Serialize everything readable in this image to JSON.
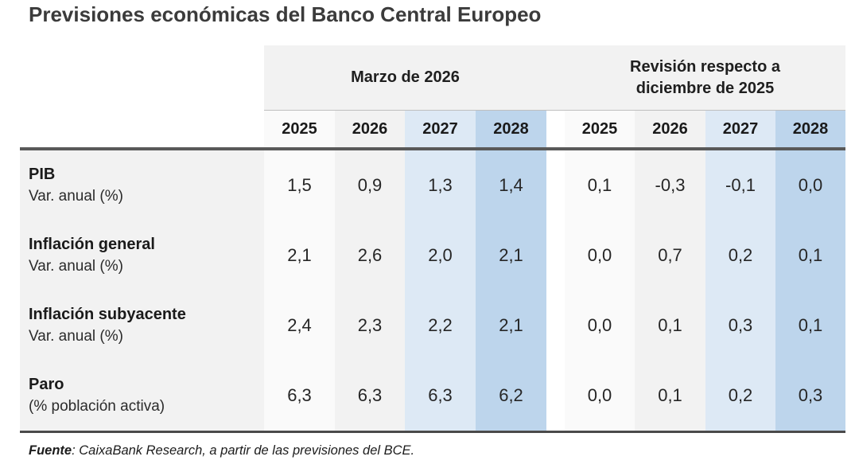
{
  "title": "Previsiones económicas del Banco Central Europeo",
  "table": {
    "group_headers": [
      "Marzo de 2026",
      "Revisión respecto a diciembre de 2025"
    ],
    "years": [
      "2025",
      "2026",
      "2027",
      "2028"
    ],
    "rows": [
      {
        "label": "PIB",
        "sublabel": "Var. anual (%)",
        "marzo": [
          "1,5",
          "0,9",
          "1,3",
          "1,4"
        ],
        "revision": [
          "0,1",
          "-0,3",
          "-0,1",
          "0,0"
        ]
      },
      {
        "label": "Inflación general",
        "sublabel": "Var. anual (%)",
        "marzo": [
          "2,1",
          "2,6",
          "2,0",
          "2,1"
        ],
        "revision": [
          "0,0",
          "0,7",
          "0,2",
          "0,1"
        ]
      },
      {
        "label": "Inflación subyacente",
        "sublabel": "Var. anual (%)",
        "marzo": [
          "2,4",
          "2,3",
          "2,2",
          "2,1"
        ],
        "revision": [
          "0,0",
          "0,1",
          "0,3",
          "0,1"
        ]
      },
      {
        "label": "Paro",
        "sublabel": "(% población activa)",
        "marzo": [
          "6,3",
          "6,3",
          "6,3",
          "6,2"
        ],
        "revision": [
          "0,0",
          "0,1",
          "0,2",
          "0,3"
        ]
      }
    ]
  },
  "footer": {
    "source_label": "Fuente",
    "source_text": ": CaixaBank Research, a partir de las previsiones del BCE."
  },
  "colors": {
    "band_gray": "#f2f2f2",
    "column_2025": "#fafafa",
    "column_2026": "#f2f2f2",
    "column_2027": "#dde9f5",
    "column_2028": "#bdd5ec",
    "border_dark": "#595959",
    "border_thin": "#bfbfbf",
    "title_text": "#3b3b3b"
  },
  "chart_data": {
    "type": "table",
    "title": "Previsiones económicas del Banco Central Europeo",
    "column_groups": [
      "Marzo de 2026",
      "Revisión respecto a diciembre de 2025"
    ],
    "years": [
      2025,
      2026,
      2027,
      2028
    ],
    "rows": [
      {
        "indicator": "PIB",
        "unit": "Var. anual (%)",
        "marzo_2026": [
          1.5,
          0.9,
          1.3,
          1.4
        ],
        "revision_dic_2025": [
          0.1,
          -0.3,
          -0.1,
          0.0
        ]
      },
      {
        "indicator": "Inflación general",
        "unit": "Var. anual (%)",
        "marzo_2026": [
          2.1,
          2.6,
          2.0,
          2.1
        ],
        "revision_dic_2025": [
          0.0,
          0.7,
          0.2,
          0.1
        ]
      },
      {
        "indicator": "Inflación subyacente",
        "unit": "Var. anual (%)",
        "marzo_2026": [
          2.4,
          2.3,
          2.2,
          2.1
        ],
        "revision_dic_2025": [
          0.0,
          0.1,
          0.3,
          0.1
        ]
      },
      {
        "indicator": "Paro",
        "unit": "(% población activa)",
        "marzo_2026": [
          6.3,
          6.3,
          6.3,
          6.2
        ],
        "revision_dic_2025": [
          0.0,
          0.1,
          0.2,
          0.3
        ]
      }
    ],
    "source": "Fuente: CaixaBank Research, a partir de las previsiones del BCE."
  }
}
